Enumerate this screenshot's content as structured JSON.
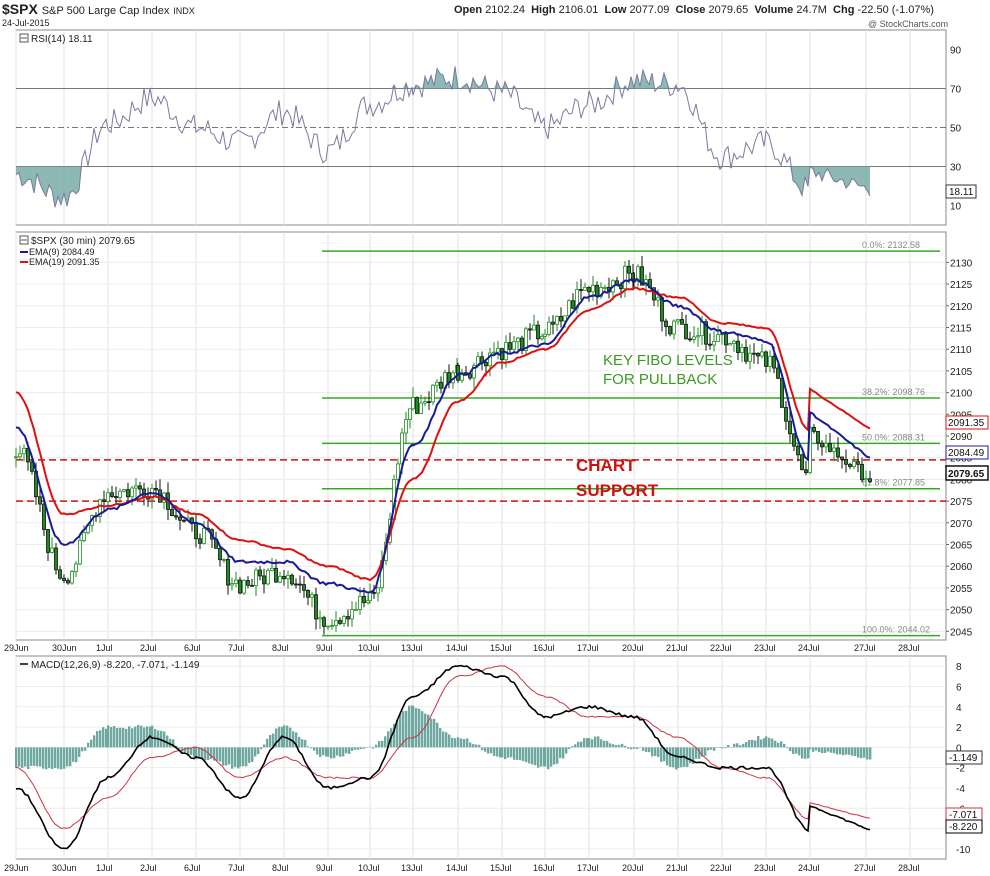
{
  "header": {
    "symbol": "$SPX",
    "name": "S&P 500 Large Cap Index",
    "exchange": "INDX",
    "date": "24-Jul-2015",
    "open_label": "Open",
    "open": "2102.24",
    "high_label": "High",
    "high": "2106.01",
    "low_label": "Low",
    "low": "2077.09",
    "close_label": "Close",
    "close": "2079.65",
    "volume_label": "Volume",
    "volume": "24.7M",
    "chg_label": "Chg",
    "chg": "-22.50 (-1.07%)",
    "watermark": "@ StockCharts.com"
  },
  "rsi_panel": {
    "legend": "RSI(14) 18.11",
    "value_tag": "18.11",
    "ticks": [
      90,
      70,
      50,
      30,
      10
    ],
    "overbought": 70,
    "oversold": 30,
    "mid": 50,
    "ylim": [
      0,
      100
    ]
  },
  "price_panel": {
    "legend_price": "$SPX (30 min) 2079.65",
    "legend_ema9": "EMA(9) 2084.49",
    "legend_ema19": "EMA(19) 2091.35",
    "ticks": [
      2130,
      2125,
      2120,
      2115,
      2110,
      2105,
      2100,
      2095,
      2090,
      2085,
      2080,
      2075,
      2070,
      2065,
      2060,
      2055,
      2050,
      2045
    ],
    "ylim": [
      2043,
      2137
    ],
    "tag_ema19": "2091.35",
    "tag_ema9": "2084.49",
    "tag_close": "2079.65",
    "fib_levels": [
      {
        "label": "0.0%: 2132.58",
        "value": 2132.58
      },
      {
        "label": "38.2%: 2098.76",
        "value": 2098.76
      },
      {
        "label": "50.0%: 2088.31",
        "value": 2088.31
      },
      {
        "label": "61.8%: 2077.85",
        "value": 2077.85
      },
      {
        "label": "100.0%: 2044.02",
        "value": 2044.02
      }
    ],
    "support_lines": [
      2084.5,
      2075
    ],
    "annotation_fibo_1": "KEY FIBO LEVELS",
    "annotation_fibo_2": "FOR PULLBACK",
    "annotation_support_1": "CHART",
    "annotation_support_2": "SUPPORT"
  },
  "macd_panel": {
    "legend": "MACD(12,26,9) -8.220, -7.071, -1.149",
    "ticks": [
      8,
      6,
      4,
      2,
      0,
      -2,
      -4,
      -6,
      -8,
      -10
    ],
    "ylim": [
      -11,
      9
    ],
    "tag_hist": "-1.149",
    "tag_signal": "-7.071",
    "tag_macd": "-8.220"
  },
  "x_axis": {
    "labels": [
      "29Jun",
      "30Jun",
      "1Jul",
      "2Jul",
      "6Jul",
      "7Jul",
      "8Jul",
      "9Jul",
      "10Jul",
      "13Jul",
      "14Jul",
      "15Jul",
      "16Jul",
      "17Jul",
      "20Jul",
      "21Jul",
      "22Jul",
      "23Jul",
      "24Jul",
      "27Jul",
      "28Jul"
    ]
  },
  "colors": {
    "up_candle": "#1e8c1e",
    "down_candle": "#111111",
    "ema9": "#1a1a99",
    "ema19": "#dd1111",
    "fib_line": "#33aa22",
    "support": "#cc1111",
    "rsi_line": "#7a7aa0",
    "rsi_fill": "#6fa8a0",
    "macd_line": "#000000",
    "signal_line": "#cc3344",
    "hist": "#6fa8a0"
  },
  "chart_data": [
    {
      "type": "line",
      "title": "RSI(14)",
      "x": [
        "29Jun",
        "30Jun",
        "1Jul",
        "2Jul",
        "6Jul",
        "7Jul",
        "8Jul",
        "9Jul",
        "10Jul",
        "13Jul",
        "14Jul",
        "15Jul",
        "16Jul",
        "17Jul",
        "20Jul",
        "21Jul",
        "22Jul",
        "23Jul",
        "24Jul"
      ],
      "series": [
        {
          "name": "RSI(14)",
          "values": [
            26,
            14,
            52,
            65,
            50,
            42,
            58,
            38,
            62,
            72,
            76,
            68,
            50,
            62,
            74,
            72,
            35,
            42,
            18
          ]
        }
      ],
      "ylim": [
        0,
        100
      ]
    },
    {
      "type": "line",
      "title": "$SPX (30 min)",
      "x": [
        "29Jun",
        "30Jun",
        "1Jul",
        "2Jul",
        "6Jul",
        "7Jul",
        "8Jul",
        "9Jul",
        "10Jul",
        "13Jul",
        "14Jul",
        "15Jul",
        "16Jul",
        "17Jul",
        "20Jul",
        "21Jul",
        "22Jul",
        "23Jul",
        "24Jul"
      ],
      "series": [
        {
          "name": "$SPX",
          "values": [
            2087,
            2058,
            2077,
            2078,
            2068,
            2056,
            2059,
            2048,
            2052,
            2097,
            2105,
            2110,
            2114,
            2124,
            2127,
            2115,
            2113,
            2107,
            2079.65
          ]
        },
        {
          "name": "EMA(9)",
          "values": [
            2092,
            2065,
            2073,
            2077,
            2070,
            2061,
            2061,
            2056,
            2054,
            2088,
            2104,
            2109,
            2111,
            2122,
            2126,
            2120,
            2114,
            2112,
            2084.49
          ]
        },
        {
          "name": "EMA(19)",
          "values": [
            2100,
            2072,
            2074,
            2076,
            2072,
            2066,
            2064,
            2060,
            2057,
            2080,
            2098,
            2107,
            2110,
            2119,
            2124,
            2122,
            2116,
            2115,
            2091.35
          ]
        }
      ],
      "ylim": [
        2043,
        2137
      ]
    },
    {
      "type": "line",
      "title": "MACD(12,26,9)",
      "x": [
        "29Jun",
        "30Jun",
        "1Jul",
        "2Jul",
        "6Jul",
        "7Jul",
        "8Jul",
        "9Jul",
        "10Jul",
        "13Jul",
        "14Jul",
        "15Jul",
        "16Jul",
        "17Jul",
        "20Jul",
        "21Jul",
        "22Jul",
        "23Jul",
        "24Jul"
      ],
      "series": [
        {
          "name": "MACD",
          "values": [
            -4,
            -10,
            -3,
            1,
            -1,
            -5,
            1,
            -4,
            -3,
            5,
            8,
            7,
            3,
            4,
            3,
            -1,
            -2,
            -2,
            -8.22
          ]
        },
        {
          "name": "Signal",
          "values": [
            -2,
            -8,
            -5,
            -1,
            0,
            -3,
            -1,
            -3,
            -3,
            1,
            7,
            8,
            5,
            3,
            3,
            1,
            -2,
            -3,
            -7.071
          ]
        },
        {
          "name": "Histogram",
          "values": [
            -2,
            -2,
            2,
            2,
            -1,
            -2,
            2,
            -1,
            0,
            4,
            1,
            -1,
            -2,
            1,
            0,
            -2,
            0,
            1,
            -1.149
          ]
        }
      ],
      "ylim": [
        -11,
        9
      ]
    }
  ]
}
